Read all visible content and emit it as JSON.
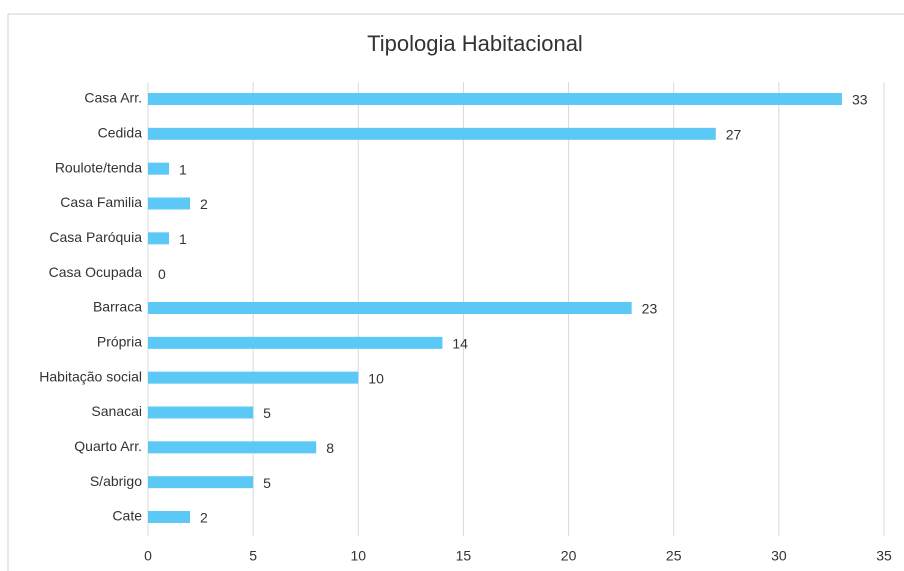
{
  "chart_data": {
    "type": "bar",
    "orientation": "horizontal",
    "title": "Tipologia Habitacional",
    "categories": [
      "Casa Arr.",
      "Cedida",
      "Roulote/tenda",
      "Casa Familia",
      "Casa Paróquia",
      "Casa Ocupada",
      "Barraca",
      "Própria",
      "Habitação social",
      "Sanacai",
      "Quarto Arr.",
      "S/abrigo",
      "Cate"
    ],
    "values": [
      33,
      27,
      1,
      2,
      1,
      0,
      23,
      14,
      10,
      5,
      8,
      5,
      2
    ],
    "color": "#5bc8f5",
    "xlim": [
      0,
      35
    ],
    "xticks": [
      0,
      5,
      10,
      15,
      20,
      25,
      30,
      35
    ],
    "grid": true
  }
}
